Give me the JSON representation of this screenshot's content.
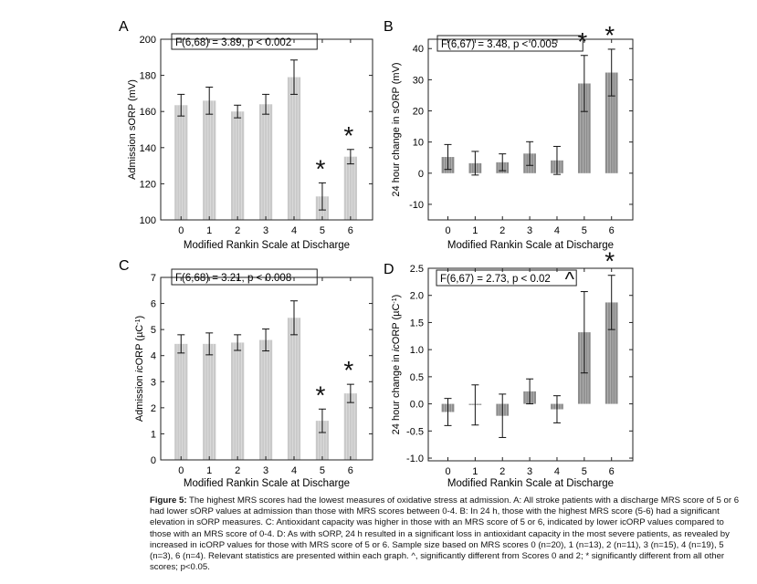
{
  "figure": {
    "caption": {
      "label": "Figure 5:",
      "text": "The highest MRS scores had the lowest measures of oxidative stress at admission. A: All stroke patients with a discharge MRS score of 5 or 6 had lower sORP values at admission than those with MRS scores between 0-4. B: In 24 h, those with the highest MRS score (5-6) had a significant elevation in sORP measures. C: Antioxidant capacity was higher in those with an MRS score of 5 or 6, indicated by lower icORP values compared to those with an MRS score of 0-4. D: As with sORP, 24 h resulted in a significant loss in antioxidant capacity in the most severe patients, as revealed by increased in icORP values for those with MRS score of 5 or 6. Sample size based on MRS scores 0 (n=20), 1 (n=13), 2 (n=11), 3 (n=15), 4 (n=19), 5 (n=3), 6 (n=4). Relevant statistics are presented within each graph. ^, significantly different from Scores 0 and 2; * significantly different from all other scores; p<0.05."
    }
  },
  "chart_data": [
    {
      "panel": "A",
      "type": "bar",
      "color": "#c9c9c9",
      "categories": [
        "0",
        "1",
        "2",
        "3",
        "4",
        "5",
        "6"
      ],
      "values": [
        163.5,
        166,
        160,
        164,
        179,
        113,
        135
      ],
      "errors": [
        6,
        7.5,
        3.5,
        5.5,
        9.5,
        7.5,
        4
      ],
      "markers": [
        "",
        "",
        "",
        "",
        "",
        "*",
        "*"
      ],
      "stat_label": "F(6,68) = 3.89, p < 0.002",
      "xlabel": "Modified Rankin Scale at Discharge",
      "ylabel": "Admission sORP (mV)",
      "ylim": [
        100,
        200
      ],
      "yticks": [
        100,
        120,
        140,
        160,
        180,
        200
      ]
    },
    {
      "panel": "B",
      "type": "bar",
      "color": "#8c8c8c",
      "categories": [
        "0",
        "1",
        "2",
        "3",
        "4",
        "5",
        "6"
      ],
      "values": [
        5.2,
        3.2,
        3.5,
        6.3,
        4.1,
        28.8,
        32.3
      ],
      "errors": [
        4,
        3.8,
        2.7,
        3.8,
        4.5,
        9,
        7.5
      ],
      "markers": [
        "",
        "",
        "",
        "",
        "",
        "*",
        "*"
      ],
      "stat_label": "F(6,67) = 3.48, p < 0.005",
      "xlabel": "Modified Rankin Scale at Discharge",
      "ylabel": "24 hour change in sORP (mV)",
      "ylim": [
        -15,
        43
      ],
      "yticks": [
        -10,
        0,
        10,
        20,
        30,
        40
      ]
    },
    {
      "panel": "C",
      "type": "bar",
      "color": "#c9c9c9",
      "categories": [
        "0",
        "1",
        "2",
        "3",
        "4",
        "5",
        "6"
      ],
      "values": [
        4.45,
        4.45,
        4.5,
        4.6,
        5.45,
        1.5,
        2.55
      ],
      "errors": [
        0.35,
        0.42,
        0.3,
        0.42,
        0.65,
        0.45,
        0.35
      ],
      "markers": [
        "",
        "",
        "",
        "",
        "",
        "*",
        "*"
      ],
      "stat_label": "F(6,68) = 3.21, p < 0.008",
      "xlabel": "Modified Rankin Scale at Discharge",
      "ylabel_main": "Admission ",
      "ylabel_italic": "ic",
      "ylabel_tail": "ORP (µC",
      "ylabel_sup": "-1",
      "ylabel_end": ")",
      "ylim": [
        0,
        7
      ],
      "yticks": [
        0,
        1,
        2,
        3,
        4,
        5,
        6,
        7
      ]
    },
    {
      "panel": "D",
      "type": "bar",
      "color": "#8c8c8c",
      "categories": [
        "0",
        "1",
        "2",
        "3",
        "4",
        "5",
        "6"
      ],
      "values": [
        -0.15,
        -0.02,
        -0.22,
        0.23,
        -0.1,
        1.32,
        1.87
      ],
      "errors": [
        0.25,
        0.37,
        0.4,
        0.23,
        0.25,
        0.75,
        0.5
      ],
      "markers": [
        "",
        "",
        "",
        "",
        "",
        "^",
        "*"
      ],
      "stat_label": "F(6,67) = 2.73, p < 0.02",
      "xlabel": "Modified Rankin Scale at Discharge",
      "ylabel_main": "24 hour change in ",
      "ylabel_italic": "ic",
      "ylabel_tail": "ORP (µC",
      "ylabel_sup": "-1",
      "ylabel_end": ")",
      "ylim": [
        -1.05,
        2.5
      ],
      "yticks": [
        -1.0,
        -0.5,
        0.0,
        0.5,
        1.0,
        1.5,
        2.0,
        2.5
      ]
    }
  ]
}
